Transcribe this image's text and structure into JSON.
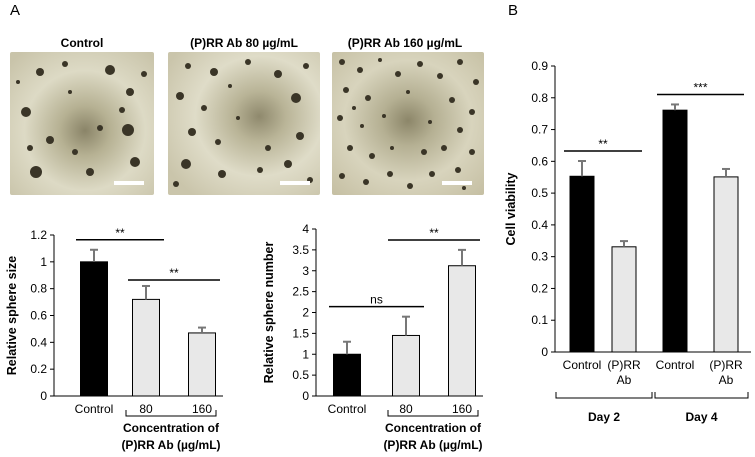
{
  "panel_a_label": "A",
  "panel_b_label": "B",
  "micrographs": [
    {
      "title": "Control"
    },
    {
      "title": "(P)RR Ab 80 µg/mL"
    },
    {
      "title": "(P)RR Ab 160 µg/mL"
    }
  ],
  "chart_data": [
    {
      "type": "bar",
      "panel": "A-left",
      "ylabel": "Relative sphere size",
      "ylim": [
        0,
        1.2
      ],
      "yticks": [
        "0",
        "0.2",
        "0.4",
        "0.6",
        "0.8",
        "1",
        "1.2"
      ],
      "categories": [
        "Control",
        "80",
        "160"
      ],
      "values": [
        1.0,
        0.72,
        0.47
      ],
      "errors": [
        0.09,
        0.1,
        0.04
      ],
      "bar_colors": [
        "#000000",
        "#e8e8e8",
        "#e8e8e8"
      ],
      "group_label": [
        "Concentration of",
        "(P)RR Ab (µg/mL)"
      ],
      "significance": [
        {
          "from": 0,
          "to": 1,
          "label": "**"
        },
        {
          "from": 1,
          "to": 2,
          "label": "**"
        }
      ]
    },
    {
      "type": "bar",
      "panel": "A-right",
      "ylabel": "Relative sphere number",
      "ylim": [
        0,
        4
      ],
      "yticks": [
        "0",
        "0.5",
        "1",
        "1.5",
        "2",
        "2.5",
        "3",
        "3.5",
        "4"
      ],
      "categories": [
        "Control",
        "80",
        "160"
      ],
      "values": [
        1.0,
        1.45,
        3.12
      ],
      "errors": [
        0.3,
        0.45,
        0.38
      ],
      "bar_colors": [
        "#000000",
        "#e8e8e8",
        "#e8e8e8"
      ],
      "group_label": [
        "Concentration of",
        "(P)RR Ab (µg/mL)"
      ],
      "significance": [
        {
          "from": 0,
          "to": 1,
          "label": "ns"
        },
        {
          "from": 1,
          "to": 2,
          "label": "**"
        }
      ]
    },
    {
      "type": "bar",
      "panel": "B",
      "ylabel": "Cell viability",
      "ylim": [
        0,
        0.9
      ],
      "yticks": [
        "0",
        "0.1",
        "0.2",
        "0.3",
        "0.4",
        "0.5",
        "0.6",
        "0.7",
        "0.8",
        "0.9"
      ],
      "categories": [
        "Control",
        "(P)RR Ab",
        "Control",
        "(P)RR Ab"
      ],
      "values": [
        0.553,
        0.331,
        0.761,
        0.551
      ],
      "errors": [
        0.048,
        0.018,
        0.018,
        0.025
      ],
      "bar_colors": [
        "#000000",
        "#e8e8e8",
        "#000000",
        "#e8e8e8"
      ],
      "groups": [
        "Day 2",
        "Day 4"
      ],
      "significance": [
        {
          "from": 0,
          "to": 1,
          "label": "**"
        },
        {
          "from": 2,
          "to": 3,
          "label": "***"
        }
      ]
    }
  ]
}
